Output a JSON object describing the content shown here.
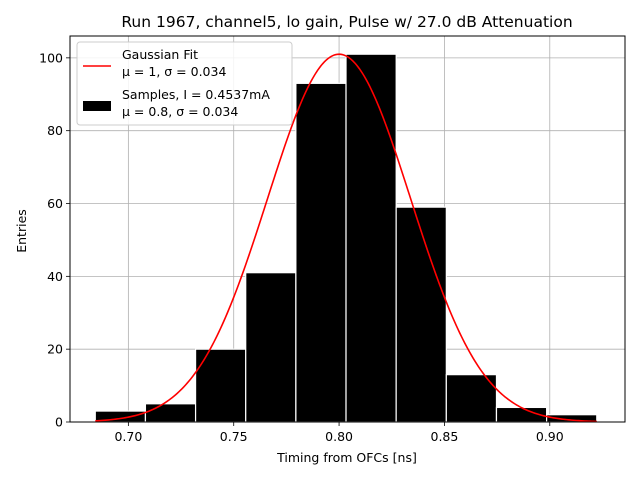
{
  "chart_data": {
    "type": "bar",
    "title": "Run 1967, channel5, lo gain, Pulse w/ 27.0 dB Attenuation",
    "xlabel": "Timing from OFCs [ns]",
    "ylabel": "Entries",
    "xlim": [
      0.6723,
      0.9357
    ],
    "ylim": [
      0,
      106
    ],
    "grid": true,
    "xticks": [
      0.7,
      0.75,
      0.8,
      0.85,
      0.9
    ],
    "xtick_labels": [
      "0.70",
      "0.75",
      "0.80",
      "0.85",
      "0.90"
    ],
    "yticks": [
      0,
      20,
      40,
      60,
      80,
      100
    ],
    "ytick_labels": [
      "0",
      "20",
      "40",
      "60",
      "80",
      "100"
    ],
    "histogram": {
      "name": "Samples, I = 0.4537mA",
      "bin_edges": [
        0.6843,
        0.7081,
        0.7319,
        0.7557,
        0.7795,
        0.8033,
        0.8271,
        0.8509,
        0.8747,
        0.8985,
        0.9223
      ],
      "counts": [
        3,
        5,
        20,
        41,
        93,
        101,
        59,
        13,
        4,
        2
      ],
      "color": "#000000",
      "edgecolor": "#ffffff"
    },
    "fit": {
      "name": "Gaussian Fit",
      "amplitude": 101,
      "mean": 0.8,
      "sigma": 0.034,
      "x_range": [
        0.6843,
        0.9223
      ],
      "color": "#ff0000"
    },
    "legend": {
      "placement": "top-left",
      "entries": [
        {
          "label": "Gaussian Fit",
          "sublabel": "μ = 1, σ = 0.034",
          "kind": "line",
          "color": "#ff0000"
        },
        {
          "label": "Samples, I = 0.4537mA",
          "sublabel": "μ = 0.8, σ = 0.034",
          "kind": "patch",
          "color": "#000000"
        }
      ]
    }
  }
}
